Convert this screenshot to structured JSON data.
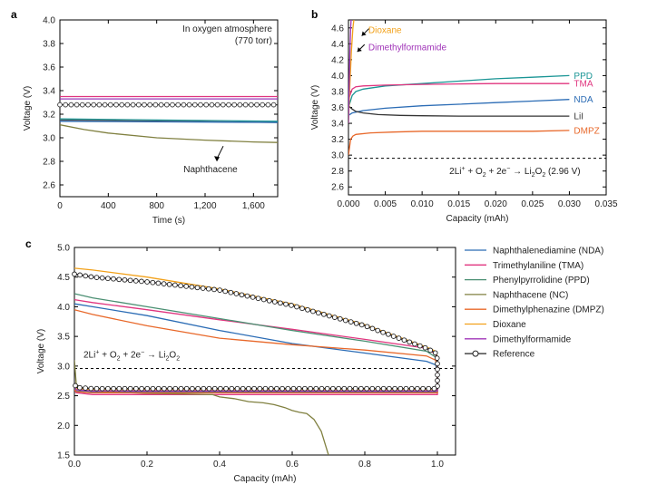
{
  "chart_data": [
    {
      "panel": "a",
      "type": "line",
      "xlabel": "Time (s)",
      "ylabel": "Voltage (V)",
      "xlim": [
        0,
        1800
      ],
      "ylim": [
        2.5,
        4.0
      ],
      "xticks": [
        0,
        400,
        800,
        1200,
        1600
      ],
      "xtick_labels": [
        "0",
        "400",
        "800",
        "1,200",
        "1,600"
      ],
      "yticks": [
        2.6,
        2.8,
        3.0,
        3.2,
        3.4,
        3.6,
        3.8,
        4.0
      ],
      "ytick_labels": [
        "2.6",
        "2.8",
        "3.0",
        "3.2",
        "3.4",
        "3.6",
        "3.8",
        "4.0"
      ],
      "annotation": "In oxygen atmosphere",
      "annotation2": "(770 torr)",
      "callout": "Naphthacene",
      "callout_at": [
        1320,
        2.96
      ],
      "series": [
        {
          "color": "#e0357f",
          "x": [
            0,
            1800
          ],
          "y": [
            3.35,
            3.35
          ]
        },
        {
          "color": "#9a39b8",
          "x": [
            0,
            1800
          ],
          "y": [
            3.33,
            3.33
          ]
        },
        {
          "color": "#333333",
          "marker": "circle",
          "x": [
            0,
            1800
          ],
          "y": [
            3.28,
            3.28
          ]
        },
        {
          "color": "#1a9595",
          "x": [
            0,
            1800
          ],
          "y": [
            3.16,
            3.14
          ]
        },
        {
          "color": "#555555",
          "x": [
            0,
            1800
          ],
          "y": [
            3.15,
            3.13
          ]
        },
        {
          "color": "#2b6cb5",
          "x": [
            0,
            1800
          ],
          "y": [
            3.14,
            3.13
          ]
        },
        {
          "color": "#808040",
          "x": [
            0,
            200,
            400,
            800,
            1200,
            1600,
            1800
          ],
          "y": [
            3.11,
            3.07,
            3.04,
            3.0,
            2.98,
            2.965,
            2.96
          ]
        }
      ]
    },
    {
      "panel": "b",
      "type": "line",
      "xlabel": "Capacity (mAh)",
      "ylabel": "Voltage (V)",
      "xlim": [
        0,
        0.035
      ],
      "ylim": [
        2.5,
        4.7
      ],
      "xticks": [
        0,
        0.005,
        0.01,
        0.015,
        0.02,
        0.025,
        0.03,
        0.035
      ],
      "xtick_labels": [
        "0.000",
        "0.005",
        "0.010",
        "0.015",
        "0.020",
        "0.025",
        "0.030",
        "0.035"
      ],
      "yticks": [
        2.6,
        2.8,
        3.0,
        3.2,
        3.4,
        3.6,
        3.8,
        4.0,
        4.2,
        4.4,
        4.6
      ],
      "ytick_labels": [
        "2.6",
        "2.8",
        "3.0",
        "3.2",
        "3.4",
        "3.6",
        "3.8",
        "4.0",
        "4.2",
        "4.4",
        "4.6"
      ],
      "reference_line": 2.96,
      "equation": {
        "a": "2Li",
        "b": "+",
        "c": " + O",
        "d": "2",
        "e": " + 2e",
        "f": "−",
        "g": "  →  Li",
        "h": "2",
        "i": "O",
        "j": "2",
        "k": "  (2.96 V)"
      },
      "series": [
        {
          "name": "PPD",
          "color": "#1a9595",
          "x": [
            0,
            0.0005,
            0.001,
            0.002,
            0.005,
            0.01,
            0.015,
            0.02,
            0.025,
            0.03
          ],
          "y": [
            3.6,
            3.75,
            3.8,
            3.83,
            3.87,
            3.9,
            3.93,
            3.96,
            3.98,
            4.0
          ]
        },
        {
          "name": "TMA",
          "color": "#e0357f",
          "x": [
            0,
            0.0005,
            0.001,
            0.002,
            0.005,
            0.01,
            0.015,
            0.02,
            0.025,
            0.03
          ],
          "y": [
            3.7,
            3.83,
            3.86,
            3.87,
            3.88,
            3.89,
            3.895,
            3.9,
            3.9,
            3.9
          ]
        },
        {
          "name": "NDA",
          "color": "#2b6cb5",
          "x": [
            0,
            0.0005,
            0.001,
            0.002,
            0.005,
            0.01,
            0.015,
            0.02,
            0.025,
            0.03
          ],
          "y": [
            3.5,
            3.53,
            3.54,
            3.56,
            3.59,
            3.62,
            3.64,
            3.66,
            3.68,
            3.7
          ]
        },
        {
          "name": "LiI",
          "color": "#333333",
          "x": [
            0,
            0.0005,
            0.001,
            0.002,
            0.004,
            0.007,
            0.01,
            0.015,
            0.02,
            0.025,
            0.03
          ],
          "y": [
            3.62,
            3.58,
            3.55,
            3.53,
            3.51,
            3.5,
            3.495,
            3.49,
            3.49,
            3.49,
            3.49
          ]
        },
        {
          "name": "DMPZ",
          "color": "#e8682a",
          "x": [
            0,
            0.0003,
            0.0006,
            0.001,
            0.003,
            0.006,
            0.01,
            0.015,
            0.02,
            0.025,
            0.03
          ],
          "y": [
            3.0,
            3.2,
            3.24,
            3.26,
            3.28,
            3.29,
            3.3,
            3.3,
            3.3,
            3.3,
            3.31
          ]
        },
        {
          "name": "Dioxane",
          "color": "#f2a11a",
          "x": [
            0,
            0.0002,
            0.0004,
            0.0006,
            0.0008
          ],
          "y": [
            3.4,
            3.9,
            4.3,
            4.6,
            4.75
          ]
        },
        {
          "name": "Dimethylformamide",
          "color": "#a034b8",
          "x": [
            0,
            0.0001,
            0.0002,
            0.0003,
            0.0004
          ],
          "y": [
            3.4,
            3.9,
            4.3,
            4.6,
            4.75
          ]
        }
      ],
      "callouts": [
        {
          "label": "Dioxane",
          "color": "#f2a11a",
          "tip": [
            0.0018,
            4.5
          ]
        },
        {
          "label": "Dimethylformamide",
          "color": "#a034b8",
          "tip": [
            0.0012,
            4.3
          ]
        }
      ]
    },
    {
      "panel": "c",
      "type": "line",
      "xlabel": "Capacity (mAh)",
      "ylabel": "Voltage (V)",
      "xlim": [
        0,
        1.05
      ],
      "ylim": [
        1.5,
        5.0
      ],
      "xticks": [
        0,
        0.2,
        0.4,
        0.6,
        0.8,
        1.0
      ],
      "xtick_labels": [
        "0.0",
        "0.2",
        "0.4",
        "0.6",
        "0.8",
        "1.0"
      ],
      "yticks": [
        1.5,
        2.0,
        2.5,
        3.0,
        3.5,
        4.0,
        4.5,
        5.0
      ],
      "ytick_labels": [
        "1.5",
        "2.0",
        "2.5",
        "3.0",
        "3.5",
        "4.0",
        "4.5",
        "5.0"
      ],
      "reference_line": 2.96,
      "equation": {
        "a": "2Li",
        "b": "+",
        "c": " + O",
        "d": "2",
        "e": " + 2e",
        "f": "−",
        "g": "  →  Li",
        "h": "2",
        "i": "O",
        "j": "2"
      },
      "legend_position": "right",
      "series": [
        {
          "name": "Naphthalenediamine (NDA)",
          "color": "#2b6cb5",
          "x": [
            0,
            0.05,
            0.2,
            0.4,
            0.6,
            0.8,
            0.97,
            0.995,
            1.0,
            1.0,
            0.995,
            0.98,
            0.9,
            0.6,
            0.3,
            0.05,
            0.005,
            0
          ],
          "y": [
            4.05,
            4.0,
            3.85,
            3.6,
            3.38,
            3.22,
            3.08,
            3.02,
            2.9,
            2.57,
            2.56,
            2.56,
            2.56,
            2.56,
            2.56,
            2.56,
            2.58,
            2.62
          ]
        },
        {
          "name": "Trimethylaniline (TMA)",
          "color": "#e0357f",
          "x": [
            0,
            0.05,
            0.2,
            0.4,
            0.6,
            0.8,
            0.97,
            0.995,
            1.0,
            1.0,
            0.995,
            0.98,
            0.9,
            0.6,
            0.3,
            0.05,
            0.005,
            0
          ],
          "y": [
            4.12,
            4.07,
            3.95,
            3.78,
            3.62,
            3.45,
            3.3,
            3.2,
            3.0,
            2.52,
            2.52,
            2.52,
            2.52,
            2.52,
            2.52,
            2.52,
            2.55,
            2.6
          ]
        },
        {
          "name": "Phenylpyrrolidine (PPD)",
          "color": "#4a8f72",
          "x": [
            0,
            0.05,
            0.2,
            0.4,
            0.6,
            0.8,
            0.97,
            0.995,
            1.0,
            1.0,
            0.995,
            0.98,
            0.9,
            0.6,
            0.3,
            0.05,
            0.005,
            0
          ],
          "y": [
            4.22,
            4.15,
            4.0,
            3.8,
            3.6,
            3.42,
            3.25,
            3.15,
            3.0,
            2.55,
            2.55,
            2.55,
            2.55,
            2.55,
            2.55,
            2.55,
            2.57,
            2.62
          ]
        },
        {
          "name": "Naphthacene (NC)",
          "color": "#808040",
          "x": [
            0,
            0.005,
            0.02,
            0.1,
            0.2,
            0.3,
            0.38,
            0.4,
            0.44,
            0.48,
            0.52,
            0.55,
            0.58,
            0.6,
            0.62,
            0.64,
            0.66,
            0.68,
            0.69,
            0.7
          ],
          "y": [
            3.1,
            2.7,
            2.6,
            2.56,
            2.54,
            2.53,
            2.52,
            2.48,
            2.45,
            2.4,
            2.38,
            2.35,
            2.3,
            2.25,
            2.22,
            2.2,
            2.1,
            1.9,
            1.7,
            1.5
          ]
        },
        {
          "name": "Dimethylphenazine (DMPZ)",
          "color": "#e8682a",
          "x": [
            0,
            0.05,
            0.2,
            0.4,
            0.6,
            0.8,
            0.97,
            0.995,
            1.0,
            1.0,
            0.995,
            0.98,
            0.9,
            0.6,
            0.3,
            0.05,
            0.005,
            0
          ],
          "y": [
            3.95,
            3.87,
            3.68,
            3.47,
            3.36,
            3.27,
            3.17,
            3.1,
            2.95,
            2.55,
            2.55,
            2.55,
            2.55,
            2.55,
            2.55,
            2.55,
            2.57,
            2.6
          ]
        },
        {
          "name": "Dioxane",
          "color": "#f2a11a",
          "x": [
            0,
            0.05,
            0.2,
            0.4,
            0.6,
            0.8,
            0.97,
            0.995,
            1.0,
            1.0,
            0.995,
            0.98,
            0.9,
            0.6,
            0.3,
            0.05,
            0.005,
            0
          ],
          "y": [
            4.65,
            4.62,
            4.5,
            4.3,
            4.05,
            3.7,
            3.32,
            3.25,
            3.15,
            2.6,
            2.6,
            2.6,
            2.6,
            2.6,
            2.6,
            2.6,
            2.62,
            2.65
          ]
        },
        {
          "name": "Dimethylformamide",
          "color": "#a034b8",
          "x": [
            0,
            0.05,
            0.2,
            0.4,
            0.6,
            0.8,
            0.97,
            0.995,
            1.0,
            1.0,
            0.995,
            0.98,
            0.9,
            0.6,
            0.3,
            0.05,
            0.005,
            0
          ],
          "y": [
            4.55,
            4.5,
            4.42,
            4.28,
            4.02,
            3.68,
            3.3,
            3.22,
            3.12,
            2.58,
            2.58,
            2.58,
            2.58,
            2.58,
            2.58,
            2.58,
            2.6,
            2.65
          ]
        },
        {
          "name": "Reference",
          "color": "#222222",
          "marker": "circle",
          "x": [
            0,
            0.05,
            0.2,
            0.4,
            0.6,
            0.8,
            0.97,
            0.995,
            1.0,
            1.0,
            0.995,
            0.98,
            0.9,
            0.6,
            0.3,
            0.05,
            0.005,
            0
          ],
          "y": [
            4.55,
            4.5,
            4.42,
            4.28,
            4.02,
            3.68,
            3.3,
            3.22,
            3.12,
            2.62,
            2.62,
            2.62,
            2.62,
            2.62,
            2.62,
            2.62,
            2.64,
            2.7
          ]
        }
      ]
    }
  ]
}
